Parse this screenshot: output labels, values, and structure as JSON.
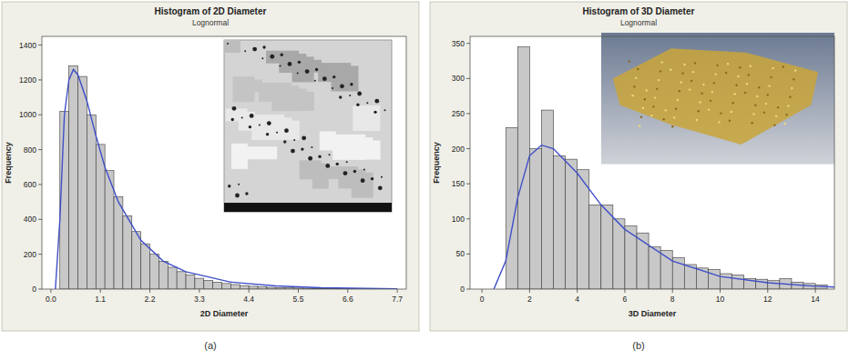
{
  "chart_data": [
    {
      "type": "histogram",
      "title": "Histogram of 2D Diameter",
      "subtitle": "Lognormal",
      "x_label": "2D Diameter",
      "y_label": "Frequency",
      "panel_label": "(a)",
      "color": "#c8c8c8",
      "grid": false,
      "bins": [
        0.2,
        0.4,
        0.6,
        0.8,
        1.0,
        1.2,
        1.4,
        1.6,
        1.8,
        2.0,
        2.2,
        2.4,
        2.6,
        2.8,
        3.0,
        3.2,
        3.4,
        3.6,
        3.8,
        4.0,
        4.2,
        4.4,
        4.6,
        4.8,
        5.0,
        5.2,
        5.4,
        5.6,
        5.8,
        6.0,
        6.2,
        6.4,
        6.6,
        6.8,
        7.0,
        7.2,
        7.4,
        7.6
      ],
      "values": [
        1020,
        1280,
        1220,
        1000,
        830,
        680,
        530,
        420,
        330,
        260,
        200,
        160,
        125,
        100,
        80,
        62,
        50,
        40,
        32,
        26,
        20,
        16,
        13,
        10,
        8,
        7,
        6,
        5,
        4,
        3,
        3,
        2,
        2,
        1,
        1,
        1,
        1
      ],
      "series": [
        {
          "type": "line",
          "color": "#3f4fc8",
          "x": [
            0.1,
            0.2,
            0.3,
            0.4,
            0.5,
            0.6,
            0.8,
            1.0,
            1.2,
            1.5,
            2.0,
            2.5,
            3.0,
            4.0,
            5.0,
            6.0,
            7.0,
            7.7
          ],
          "values": [
            0,
            400,
            1000,
            1200,
            1260,
            1230,
            1080,
            880,
            700,
            500,
            280,
            160,
            100,
            40,
            18,
            8,
            4,
            2
          ]
        }
      ],
      "xlim": [
        -0.2,
        7.9
      ],
      "ylim": [
        0,
        1450
      ],
      "xticks": [
        {
          "value": 0,
          "label": "0.0"
        },
        1.1,
        2.2,
        3.3,
        4.4,
        5.5,
        6.6,
        7.7
      ],
      "yticks": [
        0,
        200,
        400,
        600,
        800,
        1000,
        1200,
        1400
      ]
    },
    {
      "type": "histogram",
      "title": "Histogram of 3D Diameter",
      "subtitle": "Lognormal",
      "x_label": "3D Diameter",
      "y_label": "Frequency",
      "panel_label": "(b)",
      "color": "#c8c8c8",
      "grid": false,
      "bins": [
        1.0,
        1.5,
        2.0,
        2.5,
        3.0,
        3.5,
        4.0,
        4.5,
        5.0,
        5.5,
        6.0,
        6.5,
        7.0,
        7.5,
        8.0,
        8.5,
        9.0,
        9.5,
        10.0,
        10.5,
        11.0,
        11.5,
        12.0,
        12.5,
        13.0,
        13.5,
        14.0,
        14.5
      ],
      "values": [
        230,
        345,
        200,
        255,
        190,
        185,
        170,
        120,
        120,
        100,
        90,
        80,
        60,
        55,
        45,
        35,
        30,
        28,
        22,
        20,
        15,
        14,
        12,
        15,
        10,
        8,
        6
      ],
      "series": [
        {
          "type": "line",
          "color": "#3f4fc8",
          "x": [
            0.5,
            1,
            1.5,
            2,
            2.5,
            3,
            4,
            5,
            6,
            8,
            10,
            12,
            14,
            14.8
          ],
          "values": [
            0,
            40,
            130,
            190,
            205,
            200,
            165,
            120,
            85,
            40,
            18,
            9,
            4,
            3
          ]
        }
      ],
      "xlim": [
        -0.5,
        14.8
      ],
      "ylim": [
        0,
        360
      ],
      "xticks": [
        0,
        2,
        4,
        6,
        8,
        10,
        12,
        14
      ],
      "yticks": [
        0,
        50,
        100,
        150,
        200,
        250,
        300,
        350
      ]
    }
  ]
}
